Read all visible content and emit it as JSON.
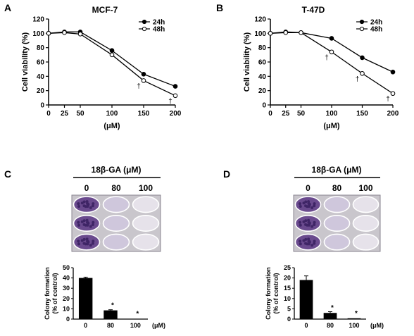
{
  "panels": {
    "A": {
      "letter": "A",
      "title": "MCF-7"
    },
    "B": {
      "letter": "B",
      "title": "T-47D"
    },
    "C": {
      "letter": "C",
      "header": "18β-GA (μM)",
      "well_labels": [
        "0",
        "80",
        "100"
      ]
    },
    "D": {
      "letter": "D",
      "header": "18β-GA (μM)",
      "well_labels": [
        "0",
        "80",
        "100"
      ]
    }
  },
  "colors": {
    "line": "#000000",
    "filled_marker": "#000000",
    "open_marker": "#ffffff",
    "bar": "#000000",
    "plate_bg": "#c9c6cc",
    "well_dense": "#6a4a8e",
    "well_sparse": "#cfc7dc",
    "well_empty": "#e6e2ea"
  },
  "chart_data": [
    {
      "id": "A",
      "type": "line",
      "title": "MCF-7",
      "xlabel": "(μM)",
      "ylabel": "Cell  viability (%)",
      "x": [
        0,
        25,
        50,
        100,
        150,
        200
      ],
      "xlim": [
        0,
        200
      ],
      "ylim": [
        0,
        120
      ],
      "yticks": [
        0,
        20,
        40,
        60,
        80,
        100,
        120
      ],
      "series": [
        {
          "name": "24h",
          "marker": "filled",
          "values": [
            100,
            102,
            102,
            76,
            43,
            26
          ]
        },
        {
          "name": "48h",
          "marker": "open",
          "values": [
            100,
            101,
            99,
            70,
            34,
            13
          ]
        }
      ],
      "annotations": [
        {
          "symbol": "†",
          "x": 150,
          "series": "48h"
        },
        {
          "symbol": "†",
          "x": 200,
          "series": "48h"
        }
      ],
      "legend": "top-right"
    },
    {
      "id": "B",
      "type": "line",
      "title": "T-47D",
      "xlabel": "(μM)",
      "ylabel": "Cell  viability (%)",
      "x": [
        0,
        25,
        50,
        100,
        150,
        200
      ],
      "xlim": [
        0,
        200
      ],
      "ylim": [
        0,
        120
      ],
      "yticks": [
        0,
        20,
        40,
        60,
        80,
        100,
        120
      ],
      "series": [
        {
          "name": "24h",
          "marker": "filled",
          "values": [
            100,
            102,
            101,
            93,
            66,
            46
          ]
        },
        {
          "name": "48h",
          "marker": "open",
          "values": [
            100,
            101,
            101,
            74,
            44,
            16
          ]
        }
      ],
      "annotations": [
        {
          "symbol": "†",
          "x": 100,
          "series": "48h"
        },
        {
          "symbol": "†",
          "x": 150,
          "series": "48h"
        },
        {
          "symbol": "†",
          "x": 200,
          "series": "48h"
        }
      ],
      "legend": "top-right"
    },
    {
      "id": "C",
      "type": "bar",
      "categories": [
        "0",
        "80",
        "100"
      ],
      "values": [
        40,
        8.5,
        0.3
      ],
      "errors": [
        0.8,
        0.6,
        0
      ],
      "ylabel": "Colony formation\n(% of control)",
      "xunit": "(μM)",
      "ylim": [
        0,
        50
      ],
      "yticks": [
        0,
        10,
        20,
        30,
        40,
        50
      ],
      "annotations": [
        {
          "symbol": "*",
          "category": "80"
        },
        {
          "symbol": "*",
          "category": "100"
        }
      ]
    },
    {
      "id": "D",
      "type": "bar",
      "categories": [
        "0",
        "80",
        "100"
      ],
      "values": [
        19,
        3,
        0.4
      ],
      "errors": [
        2,
        0.6,
        0
      ],
      "ylabel": "Colony formation\n(% of control)",
      "xunit": "(μM)",
      "ylim": [
        0,
        25
      ],
      "yticks": [
        0,
        5,
        10,
        15,
        20,
        25
      ],
      "annotations": [
        {
          "symbol": "*",
          "category": "80"
        },
        {
          "symbol": "*",
          "category": "100"
        }
      ]
    }
  ]
}
